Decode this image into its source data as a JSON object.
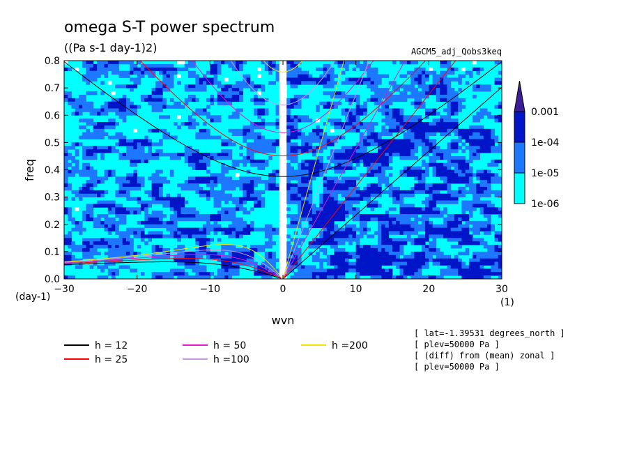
{
  "chart_data": {
    "type": "heatmap",
    "title": "omega S-T power spectrum",
    "units": "((Pa s-1 day-1)2)",
    "dataset": "AGCM5_adj_Qobs3keq",
    "xlabel": "wvn",
    "ylabel": "freq",
    "x_unit": "(1)",
    "y_unit": "(day-1)",
    "xlim": [
      -30,
      30
    ],
    "ylim": [
      0.0,
      0.8
    ],
    "x_ticks": [
      "-30",
      "-20",
      "-10",
      "0",
      "10",
      "20",
      "30"
    ],
    "y_ticks": [
      "0.0",
      "0.1",
      "0.2",
      "0.3",
      "0.4",
      "0.5",
      "0.6",
      "0.7",
      "0.8"
    ],
    "colorbar": {
      "levels": [
        "1e-06",
        "1e-05",
        "1e-04",
        "0.001"
      ],
      "colors": [
        "#00ffff",
        "#1e78ff",
        "#0014c8",
        "#3c1e96"
      ],
      "extend": "max"
    },
    "dispersion_curves": [
      {
        "label": "h = 12",
        "h": 12,
        "color": "#000000"
      },
      {
        "label": "h = 25",
        "h": 25,
        "color": "#ff0000"
      },
      {
        "label": "h = 50",
        "h": 50,
        "color": "#e619c8"
      },
      {
        "label": "h =100",
        "h": 100,
        "color": "#cc99e6"
      },
      {
        "label": "h =200",
        "h": 200,
        "color": "#f0e600"
      }
    ],
    "annotations": [
      "[ lat=-1.39531 degrees_north ]",
      "[ plev=50000 Pa ]",
      "[ (diff) from (mean) zonal ]",
      "[ plev=50000 Pa ]"
    ]
  }
}
